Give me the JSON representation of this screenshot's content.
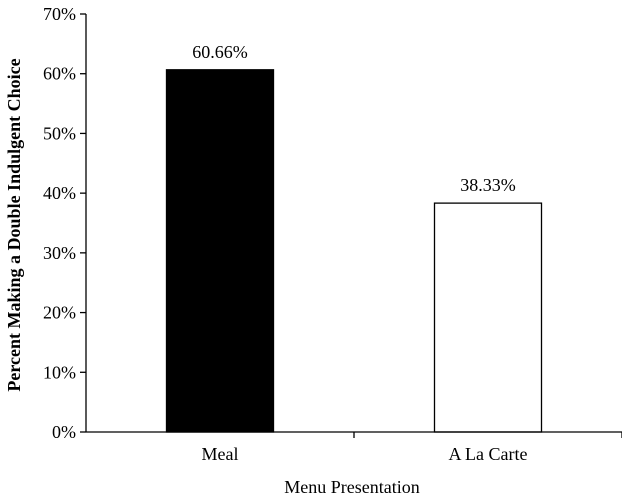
{
  "chart_data": {
    "type": "bar",
    "title": "",
    "xlabel": "Menu Presentation",
    "ylabel": "Percent Making a Double Indulgent Choice",
    "categories": [
      "Meal",
      "A La Carte"
    ],
    "values": [
      60.66,
      38.33
    ],
    "value_labels": [
      "60.66%",
      "38.33%"
    ],
    "ylim": [
      0,
      70
    ],
    "yticks": [
      0,
      10,
      20,
      30,
      40,
      50,
      60,
      70
    ],
    "ytick_labels": [
      "0%",
      "10%",
      "20%",
      "30%",
      "40%",
      "50%",
      "60%",
      "70%"
    ],
    "grid": false,
    "legend": "none",
    "bar_colors": [
      "#000000",
      "#ffffff"
    ],
    "bar_stroke": "#000000"
  }
}
